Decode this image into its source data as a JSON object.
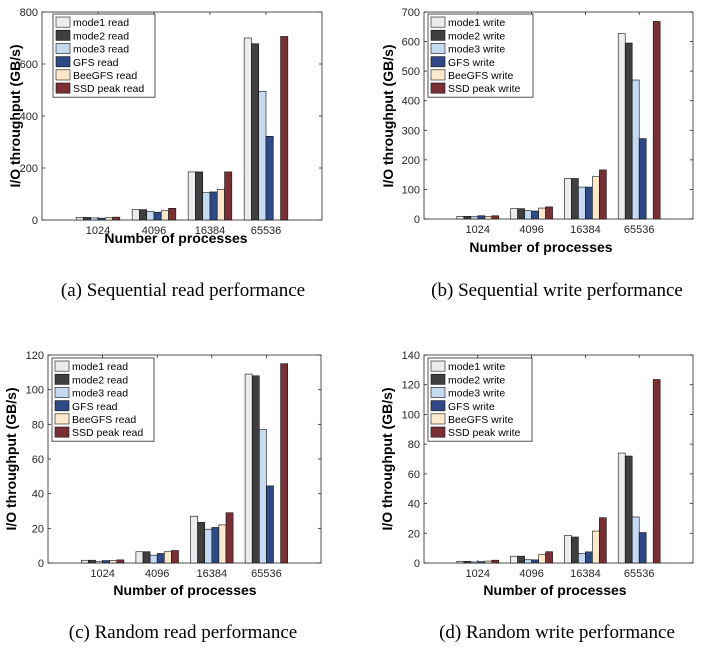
{
  "figure": {
    "panels": [
      {
        "id": "a",
        "caption": "(a)  Sequential read performance"
      },
      {
        "id": "b",
        "caption": "(b)  Sequential write performance"
      },
      {
        "id": "c",
        "caption": "(c)  Random read performance"
      },
      {
        "id": "d",
        "caption": "(d)  Random write performance"
      }
    ]
  },
  "colors": {
    "series": [
      "#ececec",
      "#3f3f3f",
      "#c5d9f1",
      "#2e4a86",
      "#fde9c9",
      "#7b2f35"
    ]
  },
  "chart_data": [
    {
      "type": "bar",
      "title": "",
      "xlabel": "Number of processes",
      "ylabel": "I/O throughput (GB/s)",
      "categories": [
        "1024",
        "4096",
        "16384",
        "65536"
      ],
      "ylim": [
        0,
        800
      ],
      "yticks": [
        0,
        200,
        400,
        600,
        800
      ],
      "legend_position": "top-left",
      "series": [
        {
          "name": "mode1 read",
          "values": [
            10,
            40,
            185,
            700
          ]
        },
        {
          "name": "mode2 read",
          "values": [
            10,
            40,
            185,
            678
          ]
        },
        {
          "name": "mode3 read",
          "values": [
            8,
            33,
            105,
            495
          ]
        },
        {
          "name": "GFS read",
          "values": [
            7,
            30,
            108,
            322
          ]
        },
        {
          "name": "BeeGFS read",
          "values": [
            9,
            36,
            118,
            0
          ]
        },
        {
          "name": "SSD peak read",
          "values": [
            11,
            45,
            185,
            706
          ]
        }
      ]
    },
    {
      "type": "bar",
      "title": "",
      "xlabel": "Number of processes",
      "ylabel": "I/O throughput (GB/s)",
      "categories": [
        "1024",
        "4096",
        "16384",
        "65536"
      ],
      "ylim": [
        0,
        700
      ],
      "yticks": [
        0,
        100,
        200,
        300,
        400,
        500,
        600,
        700
      ],
      "legend_position": "top-left",
      "series": [
        {
          "name": "mode1 write",
          "values": [
            9,
            35,
            137,
            627
          ]
        },
        {
          "name": "mode2 write",
          "values": [
            9,
            35,
            137,
            595
          ]
        },
        {
          "name": "mode3 write",
          "values": [
            8,
            28,
            108,
            470
          ]
        },
        {
          "name": "GFS write",
          "values": [
            11,
            27,
            108,
            272
          ]
        },
        {
          "name": "BeeGFS write",
          "values": [
            9,
            37,
            143,
            0
          ]
        },
        {
          "name": "SSD peak write",
          "values": [
            11,
            41,
            166,
            668
          ]
        }
      ]
    },
    {
      "type": "bar",
      "title": "",
      "xlabel": "Number of processes",
      "ylabel": "I/O throughput (GB/s)",
      "categories": [
        "1024",
        "4096",
        "16384",
        "65536"
      ],
      "ylim": [
        0,
        120
      ],
      "yticks": [
        0,
        20,
        40,
        60,
        80,
        100,
        120
      ],
      "legend_position": "top-left",
      "series": [
        {
          "name": "mode1 read",
          "values": [
            1.6,
            6.5,
            27,
            109
          ]
        },
        {
          "name": "mode2 read",
          "values": [
            1.6,
            6.5,
            23.5,
            108
          ]
        },
        {
          "name": "mode3 read",
          "values": [
            0.9,
            4.5,
            19.5,
            77
          ]
        },
        {
          "name": "GFS read",
          "values": [
            1.4,
            5.5,
            20.5,
            44.5
          ]
        },
        {
          "name": "BeeGFS read",
          "values": [
            1.5,
            6.5,
            22,
            0
          ]
        },
        {
          "name": "SSD peak read",
          "values": [
            1.8,
            7.2,
            29,
            115
          ]
        }
      ]
    },
    {
      "type": "bar",
      "title": "",
      "xlabel": "Number of processes",
      "ylabel": "I/O throughput (GB/s)",
      "categories": [
        "1024",
        "4096",
        "16384",
        "65536"
      ],
      "ylim": [
        0,
        140
      ],
      "yticks": [
        0,
        20,
        40,
        60,
        80,
        100,
        120,
        140
      ],
      "legend_position": "top-left",
      "series": [
        {
          "name": "mode1 write",
          "values": [
            1.1,
            4.6,
            18.6,
            74
          ]
        },
        {
          "name": "mode2 write",
          "values": [
            1.1,
            4.6,
            17.5,
            72
          ]
        },
        {
          "name": "mode3 write",
          "values": [
            0.7,
            2.2,
            6.5,
            31
          ]
        },
        {
          "name": "GFS write",
          "values": [
            0.9,
            2.1,
            7.5,
            20.5
          ]
        },
        {
          "name": "BeeGFS write",
          "values": [
            1.3,
            5.6,
            21.5,
            0
          ]
        },
        {
          "name": "SSD peak write",
          "values": [
            1.9,
            7.6,
            30.5,
            123.5
          ]
        }
      ]
    }
  ]
}
